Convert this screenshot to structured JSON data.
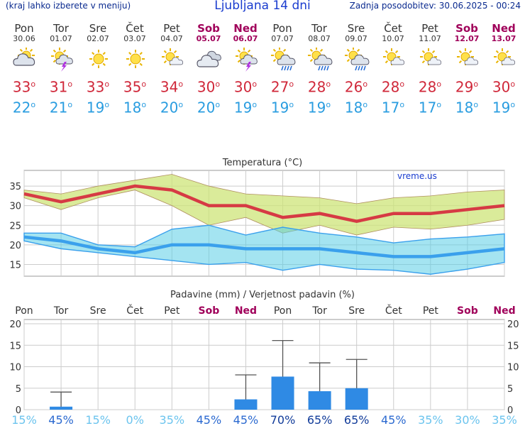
{
  "header": {
    "menu_hint": "(kraj lahko izberete v meniju)",
    "title": "Ljubljana 14 dni",
    "last_update": "Zadnja posodobitev: 30.06.2025 - 00:24"
  },
  "days": [
    {
      "name": "Pon",
      "date": "30.06",
      "weekend": false,
      "icon": "partly-cloudy-icon",
      "max": "33",
      "min": "22",
      "precip_prob": "15%"
    },
    {
      "name": "Tor",
      "date": "01.07",
      "weekend": false,
      "icon": "thunderstorm-sun-icon",
      "max": "31",
      "min": "21",
      "precip_prob": "45%"
    },
    {
      "name": "Sre",
      "date": "02.07",
      "weekend": false,
      "icon": "sun-icon",
      "max": "33",
      "min": "19",
      "precip_prob": "15%"
    },
    {
      "name": "Čet",
      "date": "03.07",
      "weekend": false,
      "icon": "sun-icon",
      "max": "35",
      "min": "18",
      "precip_prob": "0%"
    },
    {
      "name": "Pet",
      "date": "04.07",
      "weekend": false,
      "icon": "sun-small-cloud-icon",
      "max": "34",
      "min": "20",
      "precip_prob": "35%"
    },
    {
      "name": "Sob",
      "date": "05.07",
      "weekend": true,
      "icon": "cloudy-icon",
      "max": "30",
      "min": "20",
      "precip_prob": "45%"
    },
    {
      "name": "Ned",
      "date": "06.07",
      "weekend": true,
      "icon": "thunderstorm-sun-icon",
      "max": "30",
      "min": "19",
      "precip_prob": "45%"
    },
    {
      "name": "Pon",
      "date": "07.07",
      "weekend": false,
      "icon": "rain-sun-icon",
      "max": "27",
      "min": "19",
      "precip_prob": "70%"
    },
    {
      "name": "Tor",
      "date": "08.07",
      "weekend": false,
      "icon": "rain-sun-icon",
      "max": "28",
      "min": "19",
      "precip_prob": "65%"
    },
    {
      "name": "Sre",
      "date": "09.07",
      "weekend": false,
      "icon": "rain-sun-icon",
      "max": "26",
      "min": "18",
      "precip_prob": "65%"
    },
    {
      "name": "Čet",
      "date": "10.07",
      "weekend": false,
      "icon": "sun-small-cloud-icon",
      "max": "28",
      "min": "17",
      "precip_prob": "45%"
    },
    {
      "name": "Pet",
      "date": "11.07",
      "weekend": false,
      "icon": "sun-small-cloud-icon",
      "max": "28",
      "min": "17",
      "precip_prob": "35%"
    },
    {
      "name": "Sob",
      "date": "12.07",
      "weekend": true,
      "icon": "sun-small-cloud-icon",
      "max": "29",
      "min": "18",
      "precip_prob": "30%"
    },
    {
      "name": "Ned",
      "date": "13.07",
      "weekend": true,
      "icon": "sun-small-cloud-icon",
      "max": "30",
      "min": "19",
      "precip_prob": "35%"
    }
  ],
  "degree_symbol": "o",
  "chart_data": [
    {
      "type": "line",
      "title": "Temperatura (°C)",
      "source_label": "vreme.us",
      "categories": [
        "Pon",
        "Tor",
        "Sre",
        "Čet",
        "Pet",
        "Sob",
        "Ned",
        "Pon",
        "Tor",
        "Sre",
        "Čet",
        "Pet",
        "Sob",
        "Ned"
      ],
      "ylim": [
        12,
        39
      ],
      "yticks": [
        15,
        20,
        25,
        30,
        35
      ],
      "grid": true,
      "series": [
        {
          "values": [
            33,
            31,
            33,
            35,
            34,
            30,
            30,
            27,
            28,
            26,
            28,
            28,
            29,
            30
          ],
          "color": "#d63a44"
        },
        {
          "values": [
            34,
            33,
            35,
            36.5,
            38,
            35,
            33,
            32.5,
            32,
            30.5,
            32,
            32.5,
            33.5,
            34
          ]
        },
        {
          "values": [
            32,
            29,
            32,
            34,
            30,
            25,
            27,
            23,
            25,
            22.5,
            24.5,
            24,
            25,
            26.5
          ]
        },
        {
          "values": [
            22,
            21,
            19,
            18,
            20,
            20,
            19,
            19,
            19,
            18,
            17,
            17,
            18,
            19
          ],
          "color": "#3aa0ec"
        },
        {
          "values": [
            23,
            23,
            20,
            19.5,
            24,
            25,
            22.5,
            24.5,
            23,
            22,
            20.5,
            21.5,
            22,
            22.8
          ]
        },
        {
          "values": [
            21,
            19,
            18,
            17,
            16,
            15,
            15.5,
            13.5,
            15,
            13.8,
            13.5,
            12.5,
            13.8,
            15.5
          ]
        }
      ]
    },
    {
      "type": "bar",
      "title": "Padavine (mm) / Verjetnost padavin (%)",
      "categories": [
        "Pon",
        "Tor",
        "Sre",
        "Čet",
        "Pet",
        "Sob",
        "Ned",
        "Pon",
        "Tor",
        "Sre",
        "Čet",
        "Pet",
        "Sob",
        "Ned"
      ],
      "ylim": [
        0,
        21
      ],
      "yticks": [
        0,
        5,
        10,
        15,
        20
      ],
      "grid": true,
      "values": [
        0,
        0.7,
        0,
        0,
        0,
        0,
        2.4,
        7.7,
        4.3,
        5,
        0,
        0,
        0,
        0
      ],
      "range_max": [
        0,
        4.1,
        0,
        0,
        0,
        0,
        8.1,
        16.1,
        10.9,
        11.7,
        0,
        0,
        0,
        0
      ],
      "bar_color": "#2f8ae4"
    }
  ]
}
